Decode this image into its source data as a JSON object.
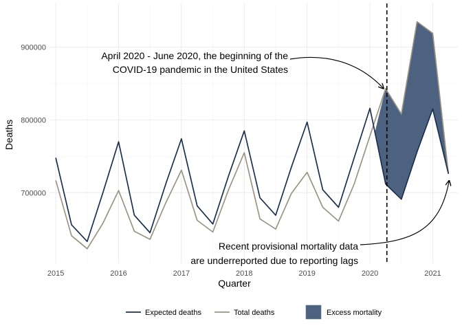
{
  "chart_data": {
    "type": "line",
    "title": "",
    "xlabel": "Quarter",
    "ylabel": "Deaths",
    "xlim": [
      2014.9,
      2021.4
    ],
    "ylim": [
      603000,
      960000
    ],
    "x_ticks": [
      2015,
      2016,
      2017,
      2018,
      2019,
      2020,
      2021
    ],
    "x_tick_labels": [
      "2015",
      "2016",
      "2017",
      "2018",
      "2019",
      "2020",
      "2021"
    ],
    "y_ticks": [
      700000,
      800000,
      900000
    ],
    "y_tick_labels": [
      "700000",
      "800000",
      "900000"
    ],
    "grid": true,
    "x": [
      2015.0,
      2015.25,
      2015.5,
      2015.75,
      2016.0,
      2016.25,
      2016.5,
      2016.75,
      2017.0,
      2017.25,
      2017.5,
      2017.75,
      2018.0,
      2018.25,
      2018.5,
      2018.75,
      2019.0,
      2019.25,
      2019.5,
      2019.75,
      2020.0,
      2020.25,
      2020.5,
      2020.75,
      2021.0,
      2021.25
    ],
    "series": [
      {
        "name": "Expected deaths",
        "color": "#1b2f4f",
        "values": [
          748000,
          656000,
          633000,
          700000,
          770000,
          669000,
          645000,
          712000,
          774000,
          682000,
          657000,
          723000,
          785000,
          693000,
          669000,
          735000,
          797000,
          704000,
          680000,
          748000,
          816000,
          712000,
          691000,
          756000,
          815000,
          726000
        ]
      },
      {
        "name": "Total deaths",
        "color": "#999483",
        "values": [
          717000,
          641000,
          623000,
          658000,
          703000,
          647000,
          636000,
          686000,
          731000,
          662000,
          646000,
          704000,
          755000,
          664000,
          650000,
          699000,
          728000,
          680000,
          661000,
          712000,
          778000,
          843000,
          808000,
          935000,
          919000,
          726000
        ]
      }
    ],
    "fill": {
      "name": "Excess mortality",
      "color": "#4d6180",
      "between": [
        "Expected deaths",
        "Total deaths"
      ],
      "x_start": 2020.08
    },
    "reference_line": {
      "x": 2020.27,
      "style": "dashed"
    },
    "annotations": [
      {
        "lines": [
          "April 2020 - June 2020, the beginning of the",
          "COVID-19 pandemic in the United States"
        ],
        "target": [
          2020.25,
          845000
        ]
      },
      {
        "lines": [
          "Recent provisional mortality data",
          "are underreported due to reporting lags"
        ],
        "target": [
          2021.25,
          726000
        ]
      }
    ],
    "legend": {
      "position": "bottom",
      "items": [
        "Expected deaths",
        "Total deaths",
        "Excess mortality"
      ]
    }
  }
}
